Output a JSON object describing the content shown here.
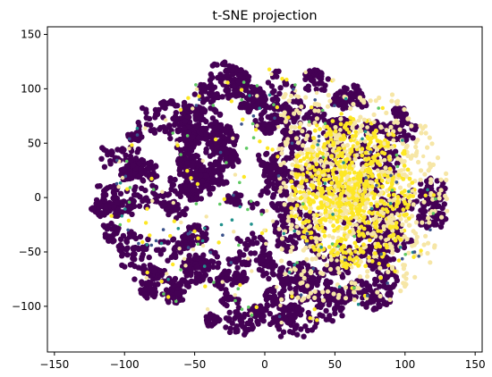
{
  "chart_data": {
    "type": "scatter",
    "title": "t-SNE projection",
    "xlabel": "",
    "ylabel": "",
    "xlim": [
      -155,
      155
    ],
    "ylim": [
      -142,
      157
    ],
    "x_ticks": [
      -150,
      -100,
      -50,
      0,
      50,
      100,
      150
    ],
    "y_ticks": [
      -100,
      -50,
      0,
      50,
      100,
      150
    ],
    "grid": false,
    "legend": "none",
    "colormap": "viridis",
    "colors": {
      "class_0": "#440154",
      "class_1": "#21918c",
      "class_2": "#fde725",
      "mid_a": "#3b528b",
      "mid_b": "#5ec962",
      "edge_tint": "#f6e6a6"
    },
    "point_cloud": {
      "shape": "ellipse",
      "center": [
        5,
        0
      ],
      "x_radius": 132,
      "y_radius": 131,
      "dominant_class": "class_0",
      "yellow_cluster_center": [
        62,
        5
      ],
      "yellow_cluster_extent": [
        [
          15,
          -80
        ],
        [
          120,
          95
        ]
      ]
    }
  }
}
